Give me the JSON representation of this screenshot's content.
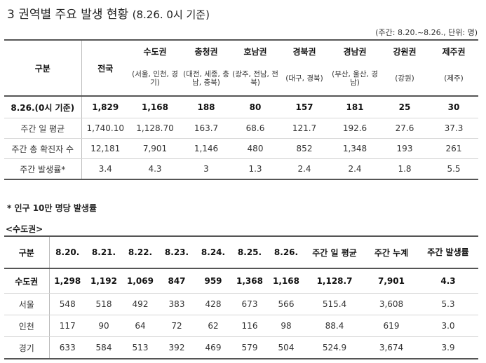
{
  "title": {
    "main": "3 권역별 주요 발생 현황",
    "paren": "(8.26. 0시 기준)"
  },
  "unit_note": "(주간: 8.20.~8.26., 단위: 명)",
  "table1": {
    "header": {
      "category": "구분",
      "national": "전국",
      "regions": [
        {
          "name": "수도권",
          "sub": "(서울, 인천, 경기)"
        },
        {
          "name": "충청권",
          "sub": "(대전, 세종, 충남, 충북)"
        },
        {
          "name": "호남권",
          "sub": "(광주, 전남, 전북)"
        },
        {
          "name": "경북권",
          "sub": "(대구, 경북)"
        },
        {
          "name": "경남권",
          "sub": "(부산, 울산, 경남)"
        },
        {
          "name": "강원권",
          "sub": "(강원)"
        },
        {
          "name": "제주권",
          "sub": "(제주)"
        }
      ]
    },
    "rows": [
      {
        "label": "8.26.(0시 기준)",
        "values": [
          "1,829",
          "1,168",
          "188",
          "80",
          "157",
          "181",
          "25",
          "30"
        ]
      },
      {
        "label": "주간 일 평균",
        "values": [
          "1,740.10",
          "1,128.70",
          "163.7",
          "68.6",
          "121.7",
          "192.6",
          "27.6",
          "37.3"
        ]
      },
      {
        "label": "주간 총 확진자 수",
        "values": [
          "12,181",
          "7,901",
          "1,146",
          "480",
          "852",
          "1,348",
          "193",
          "261"
        ]
      },
      {
        "label": "주간 발생률*",
        "values": [
          "3.4",
          "4.3",
          "3",
          "1.3",
          "2.4",
          "2.4",
          "1.8",
          "5.5"
        ]
      }
    ]
  },
  "footnote": "* 인구 10만 명당 발생률",
  "section_label": "<수도권>",
  "table2": {
    "headers": [
      "구분",
      "8.20.",
      "8.21.",
      "8.22.",
      "8.23.",
      "8.24.",
      "8.25.",
      "8.26.",
      "주간 일 평균",
      "주간 누계",
      "주간 발생률"
    ],
    "rows": [
      {
        "label": "수도권",
        "values": [
          "1,298",
          "1,192",
          "1,069",
          "847",
          "959",
          "1,368",
          "1,168",
          "1,128.7",
          "7,901",
          "4.3"
        ]
      },
      {
        "label": "서울",
        "values": [
          "548",
          "518",
          "492",
          "383",
          "428",
          "673",
          "566",
          "515.4",
          "3,608",
          "5.3"
        ]
      },
      {
        "label": "인천",
        "values": [
          "117",
          "90",
          "64",
          "72",
          "62",
          "116",
          "98",
          "88.4",
          "619",
          "3.0"
        ]
      },
      {
        "label": "경기",
        "values": [
          "633",
          "584",
          "513",
          "392",
          "469",
          "579",
          "504",
          "524.9",
          "3,674",
          "3.9"
        ]
      }
    ]
  }
}
